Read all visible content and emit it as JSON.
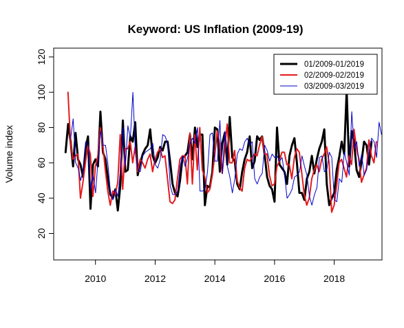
{
  "chart_data": {
    "type": "line",
    "title": "Keyword: US Inflation (2009-19)",
    "xlabel": "",
    "ylabel": "Volume index",
    "xlim": [
      2008.6,
      2019.6
    ],
    "ylim": [
      5,
      125
    ],
    "x_ticks": [
      2010,
      2012,
      2014,
      2016,
      2018
    ],
    "y_ticks": [
      20,
      40,
      60,
      80,
      100,
      120
    ],
    "grid": false,
    "legend_position": "top-right",
    "series": [
      {
        "name": "01/2009-01/2019",
        "color": "#000000",
        "start": 2009.0,
        "values": [
          66,
          82,
          72,
          58,
          77,
          62,
          59,
          52,
          68,
          75,
          34,
          59,
          62,
          58,
          89,
          66,
          62,
          51,
          42,
          40,
          45,
          33,
          47,
          84,
          55,
          56,
          75,
          72,
          83,
          53,
          60,
          65,
          68,
          70,
          79,
          64,
          60,
          63,
          69,
          67,
          72,
          72,
          61,
          48,
          43,
          41,
          50,
          63,
          64,
          66,
          76,
          62,
          80,
          69,
          76,
          76,
          36,
          47,
          46,
          55,
          80,
          79,
          55,
          71,
          77,
          59,
          86,
          63,
          61,
          48,
          45,
          55,
          62,
          66,
          75,
          57,
          61,
          75,
          73,
          75,
          65,
          52,
          47,
          45,
          38,
          80,
          59,
          57,
          55,
          48,
          64,
          70,
          74,
          60,
          43,
          43,
          39,
          51,
          55,
          64,
          54,
          62,
          68,
          72,
          79,
          48,
          36,
          40,
          43,
          56,
          63,
          72,
          65,
          101,
          58,
          78,
          72,
          56,
          52,
          61,
          72,
          70,
          59,
          72
        ]
      },
      {
        "name": "02/2009-02/2019",
        "color": "#e31a1c",
        "start": 2009.08,
        "values": [
          100,
          72,
          62,
          64,
          65,
          40,
          49,
          60,
          70,
          65,
          41,
          58,
          64,
          80,
          70,
          56,
          44,
          36,
          44,
          42,
          49,
          76,
          45,
          68,
          68,
          72,
          60,
          69,
          55,
          62,
          60,
          57,
          62,
          65,
          55,
          62,
          66,
          68,
          63,
          64,
          51,
          38,
          37,
          39,
          51,
          62,
          64,
          64,
          48,
          77,
          48,
          76,
          56,
          80,
          56,
          52,
          43,
          45,
          53,
          64,
          78,
          71,
          54,
          68,
          82,
          60,
          60,
          67,
          50,
          46,
          44,
          57,
          62,
          61,
          63,
          65,
          64,
          70,
          75,
          65,
          65,
          53,
          47,
          48,
          58,
          61,
          66,
          66,
          59,
          59,
          51,
          63,
          68,
          66,
          54,
          42,
          36,
          40,
          51,
          56,
          59,
          55,
          62,
          65,
          69,
          60,
          32,
          36,
          47,
          60,
          62,
          57,
          52,
          64,
          59,
          79,
          68,
          62,
          49,
          53,
          57,
          73,
          64,
          60,
          72
        ]
      },
      {
        "name": "03/2009-03/2019",
        "color": "#0000cc",
        "start": 2009.17,
        "values": [
          74,
          85,
          60,
          57,
          50,
          56,
          72,
          70,
          45,
          53,
          43,
          62,
          78,
          70,
          70,
          59,
          43,
          39,
          45,
          41,
          56,
          80,
          58,
          81,
          74,
          100,
          66,
          56,
          55,
          64,
          66,
          67,
          68,
          71,
          59,
          57,
          62,
          76,
          75,
          71,
          47,
          42,
          42,
          44,
          58,
          64,
          58,
          63,
          71,
          74,
          71,
          80,
          44,
          44,
          45,
          55,
          76,
          77,
          61,
          61,
          84,
          54,
          78,
          58,
          52,
          43,
          51,
          65,
          68,
          67,
          72,
          74,
          70,
          72,
          51,
          48,
          52,
          54,
          70,
          67,
          61,
          65,
          63,
          64,
          61,
          63,
          53,
          40,
          42,
          45,
          52,
          53,
          55,
          64,
          58,
          53,
          41,
          36,
          42,
          46,
          63,
          64,
          55,
          56,
          66,
          63,
          39,
          38,
          51,
          49,
          66,
          60,
          53,
          89,
          68,
          72,
          58,
          65,
          53,
          56,
          67,
          74,
          72,
          63,
          83,
          76
        ]
      }
    ]
  }
}
